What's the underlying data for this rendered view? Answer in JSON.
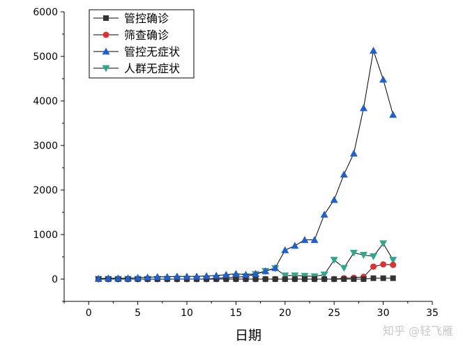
{
  "chart_data": {
    "type": "line",
    "title": "",
    "xlabel": "日期",
    "ylabel": "",
    "xlim": [
      -2.5,
      35
    ],
    "ylim": [
      -500,
      6000
    ],
    "xticks": [
      0,
      5,
      10,
      15,
      20,
      25,
      30,
      35
    ],
    "yticks": [
      0,
      1000,
      2000,
      3000,
      4000,
      5000,
      6000
    ],
    "grid": false,
    "legend_position": "top-left",
    "x": [
      1,
      2,
      3,
      4,
      5,
      6,
      7,
      8,
      9,
      10,
      11,
      12,
      13,
      14,
      15,
      16,
      17,
      18,
      19,
      20,
      21,
      22,
      23,
      24,
      25,
      26,
      27,
      28,
      29,
      30,
      31
    ],
    "series": [
      {
        "name": "管控确诊",
        "color": "#333333",
        "marker": "square",
        "values": [
          0,
          0,
          0,
          0,
          0,
          0,
          0,
          0,
          0,
          0,
          0,
          0,
          0,
          0,
          0,
          0,
          0,
          0,
          0,
          0,
          0,
          0,
          0,
          0,
          0,
          0,
          0,
          0,
          20,
          20,
          20
        ]
      },
      {
        "name": "筛查确诊",
        "color": "#e03030",
        "marker": "circle",
        "values": [
          0,
          0,
          0,
          0,
          0,
          0,
          0,
          0,
          0,
          0,
          0,
          0,
          0,
          0,
          0,
          0,
          0,
          0,
          0,
          0,
          0,
          0,
          0,
          0,
          0,
          20,
          30,
          50,
          280,
          330,
          320
        ]
      },
      {
        "name": "管控无症状",
        "color": "#1f5fcf",
        "marker": "triangle-up",
        "values": [
          10,
          20,
          20,
          20,
          30,
          40,
          50,
          50,
          60,
          60,
          60,
          70,
          80,
          100,
          120,
          100,
          120,
          180,
          250,
          650,
          750,
          880,
          880,
          1450,
          1780,
          2350,
          2820,
          3840,
          5130,
          4480,
          3690
        ]
      },
      {
        "name": "人群无症状",
        "color": "#2aa98b",
        "marker": "triangle-down",
        "values": [
          0,
          0,
          0,
          0,
          0,
          0,
          0,
          0,
          0,
          0,
          0,
          0,
          20,
          30,
          40,
          60,
          110,
          180,
          240,
          80,
          80,
          70,
          60,
          100,
          430,
          250,
          590,
          540,
          510,
          800,
          430
        ]
      }
    ]
  },
  "watermark": "知乎 @轻飞雁"
}
